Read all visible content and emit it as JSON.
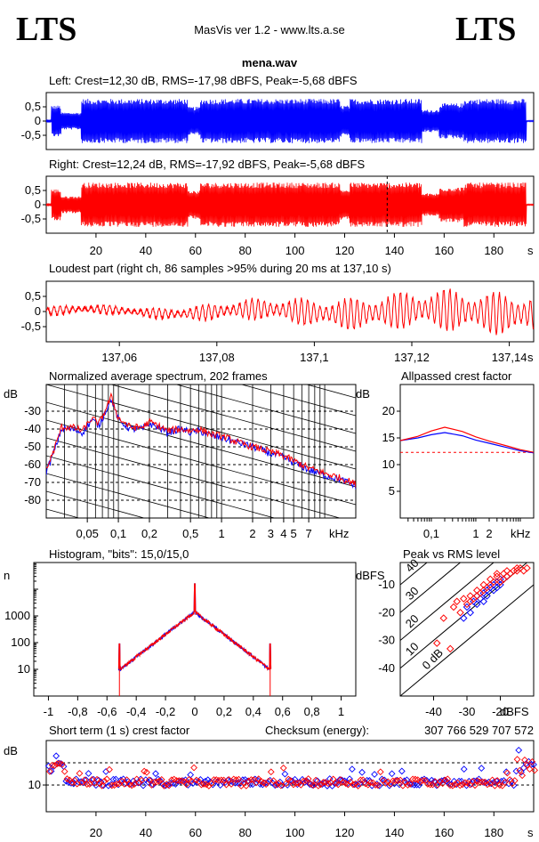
{
  "header": {
    "logo_left": "LTS",
    "logo_right": "LTS",
    "app_title": "MasVis ver 1.2 - www.lts.a.se",
    "filename": "mena.wav"
  },
  "colors": {
    "left": "#0000ff",
    "right": "#ff0000",
    "grid": "#000000"
  },
  "chart_data": [
    {
      "id": "left_waveform",
      "type": "area",
      "title": "Left: Crest=12,30 dB, RMS=-17,98 dBFS, Peak=-5,68 dBFS",
      "ytick_labels": [
        "0,5",
        "0",
        "-0,5"
      ],
      "yticks": [
        0.5,
        0,
        -0.5
      ],
      "ylim": [
        -1,
        1
      ],
      "xlim": [
        0,
        196
      ],
      "envelope_segments": [
        {
          "x": [
            0,
            2
          ],
          "amp": 0.05
        },
        {
          "x": [
            2,
            6
          ],
          "amp": 0.55
        },
        {
          "x": [
            6,
            14
          ],
          "amp": 0.3
        },
        {
          "x": [
            14,
            57
          ],
          "amp": 0.78
        },
        {
          "x": [
            57,
            62
          ],
          "amp": 0.5
        },
        {
          "x": [
            62,
            118
          ],
          "amp": 0.78
        },
        {
          "x": [
            118,
            122
          ],
          "amp": 0.55
        },
        {
          "x": [
            122,
            151
          ],
          "amp": 0.78
        },
        {
          "x": [
            151,
            158
          ],
          "amp": 0.4
        },
        {
          "x": [
            158,
            168
          ],
          "amp": 0.62
        },
        {
          "x": [
            168,
            193
          ],
          "amp": 0.78
        },
        {
          "x": [
            193,
            196
          ],
          "amp": 0.02
        }
      ]
    },
    {
      "id": "right_waveform",
      "type": "area",
      "title": "Right: Crest=12,24 dB, RMS=-17,92 dBFS, Peak=-5,68 dBFS",
      "ytick_labels": [
        "0,5",
        "0",
        "-0,5"
      ],
      "yticks": [
        0.5,
        0,
        -0.5
      ],
      "ylim": [
        -1,
        1
      ],
      "xlim": [
        0,
        196
      ],
      "xticks": [
        20,
        40,
        60,
        80,
        100,
        120,
        140,
        160,
        180
      ],
      "xtick_labels": [
        "20",
        "40",
        "60",
        "80",
        "100",
        "120",
        "140",
        "160",
        "180"
      ],
      "xunit": "s",
      "marker_x": 137.1,
      "envelope_segments": [
        {
          "x": [
            0,
            2
          ],
          "amp": 0.05
        },
        {
          "x": [
            2,
            6
          ],
          "amp": 0.55
        },
        {
          "x": [
            6,
            14
          ],
          "amp": 0.3
        },
        {
          "x": [
            14,
            57
          ],
          "amp": 0.78
        },
        {
          "x": [
            57,
            62
          ],
          "amp": 0.5
        },
        {
          "x": [
            62,
            118
          ],
          "amp": 0.78
        },
        {
          "x": [
            118,
            122
          ],
          "amp": 0.55
        },
        {
          "x": [
            122,
            151
          ],
          "amp": 0.78
        },
        {
          "x": [
            151,
            158
          ],
          "amp": 0.4
        },
        {
          "x": [
            158,
            168
          ],
          "amp": 0.62
        },
        {
          "x": [
            168,
            193
          ],
          "amp": 0.78
        },
        {
          "x": [
            193,
            196
          ],
          "amp": 0.02
        }
      ]
    },
    {
      "id": "loudest_part",
      "type": "line",
      "title": "Loudest part (right ch, 86 samples >95% during 20 ms at 137,10 s)",
      "ytick_labels": [
        "0,5",
        "0",
        "-0,5"
      ],
      "yticks": [
        0.5,
        0,
        -0.5
      ],
      "ylim": [
        -1,
        1
      ],
      "xlim": [
        137.045,
        137.145
      ],
      "xticks": [
        137.06,
        137.08,
        137.1,
        137.12,
        137.14
      ],
      "xtick_labels": [
        "137,06",
        "137,08",
        "137,1",
        "137,12",
        "137,14"
      ],
      "xunit": "s"
    },
    {
      "id": "spectrum",
      "type": "line",
      "title": "Normalized average spectrum, 202 frames",
      "ylabel": "dB",
      "xunit": "kHz",
      "xscale": "log",
      "xlim": [
        0.02,
        20
      ],
      "ylim": [
        -90,
        -15
      ],
      "yticks": [
        -30,
        -40,
        -50,
        -60,
        -70,
        -80
      ],
      "ytick_labels": [
        "-30",
        "-40",
        "-50",
        "-60",
        "-70",
        "-80"
      ],
      "xticks": [
        0.05,
        0.1,
        0.2,
        0.5,
        1,
        2,
        3,
        4,
        5,
        7
      ],
      "xtick_labels": [
        "0,05",
        "0,1",
        "0,2",
        "0,5",
        "1",
        "2",
        "3",
        "4",
        "5",
        "7"
      ],
      "series": [
        {
          "color": "blue",
          "x": [
            0.02,
            0.024,
            0.028,
            0.035,
            0.045,
            0.055,
            0.065,
            0.075,
            0.085,
            0.1,
            0.13,
            0.17,
            0.2,
            0.3,
            0.4,
            0.5,
            0.6,
            0.8,
            1,
            1.5,
            2,
            3,
            4,
            5,
            7,
            10,
            15,
            20
          ],
          "y": [
            -64,
            -52,
            -40,
            -40,
            -42,
            -35,
            -38,
            -30,
            -23,
            -35,
            -40,
            -40,
            -37,
            -42,
            -40,
            -42,
            -41,
            -44,
            -45,
            -48,
            -50,
            -54,
            -56,
            -59,
            -63,
            -66,
            -69,
            -72
          ]
        },
        {
          "color": "red",
          "x": [
            0.02,
            0.024,
            0.028,
            0.035,
            0.045,
            0.055,
            0.065,
            0.075,
            0.085,
            0.1,
            0.13,
            0.17,
            0.2,
            0.3,
            0.4,
            0.5,
            0.6,
            0.8,
            1,
            1.5,
            2,
            3,
            4,
            5,
            7,
            10,
            15,
            20
          ],
          "y": [
            -63,
            -51,
            -39,
            -39,
            -41,
            -34,
            -37,
            -29,
            -22,
            -34,
            -39,
            -39,
            -36,
            -41,
            -40,
            -41,
            -40,
            -43,
            -44,
            -48,
            -50,
            -53,
            -55,
            -58,
            -62,
            -65,
            -68,
            -71
          ]
        }
      ]
    },
    {
      "id": "allpass_crest",
      "type": "line",
      "title": "Allpassed crest factor",
      "ylabel": "dB",
      "xunit": "kHz",
      "xscale": "log",
      "xlim": [
        0.02,
        20
      ],
      "ylim": [
        0,
        25
      ],
      "yticks": [
        20,
        15,
        10,
        5
      ],
      "ytick_labels": [
        "20",
        "15",
        "10",
        "5"
      ],
      "xticks": [
        0.1,
        1,
        2
      ],
      "xtick_labels": [
        "0,1",
        "1",
        "2"
      ],
      "reference_line": 12.3,
      "series": [
        {
          "color": "blue",
          "x": [
            0.02,
            0.05,
            0.1,
            0.2,
            0.5,
            1,
            2,
            5,
            10,
            20
          ],
          "y": [
            14.5,
            15.0,
            15.6,
            16.0,
            15.4,
            14.6,
            14.0,
            13.2,
            12.6,
            12.2
          ]
        },
        {
          "color": "red",
          "x": [
            0.02,
            0.05,
            0.1,
            0.2,
            0.5,
            1,
            2,
            5,
            10,
            20
          ],
          "y": [
            14.5,
            15.3,
            16.3,
            17.0,
            16.2,
            15.2,
            14.4,
            13.5,
            12.8,
            12.3
          ]
        }
      ]
    },
    {
      "id": "histogram",
      "type": "line",
      "title": "Histogram, \"bits\": 15,0/15,0",
      "ylabel": "n",
      "yscale": "log",
      "ylim": [
        1,
        100000
      ],
      "xlim": [
        -1.1,
        1.1
      ],
      "yticks": [
        1000,
        100,
        10
      ],
      "ytick_labels": [
        "1000",
        "100",
        "10"
      ],
      "xticks": [
        -1,
        -0.8,
        -0.6,
        -0.4,
        -0.2,
        0,
        0.2,
        0.4,
        0.6,
        0.8,
        1
      ],
      "xtick_labels": [
        "-1",
        "-0,8",
        "-0,6",
        "-0,4",
        "-0,2",
        "0",
        "0,2",
        "0,4",
        "0,6",
        "0,8",
        "1"
      ]
    },
    {
      "id": "peak_vs_rms",
      "type": "scatter",
      "title": "Peak vs RMS level",
      "ylabel": "dBFS",
      "xlabel": "dBFS",
      "xlim": [
        -50,
        -10
      ],
      "ylim": [
        -50,
        -2
      ],
      "yticks": [
        -10,
        -20,
        -30,
        -40
      ],
      "ytick_labels": [
        "-10",
        "-20",
        "-30",
        "-40"
      ],
      "xticks": [
        -40,
        -30,
        -20
      ],
      "xtick_labels": [
        "-40",
        "-30",
        "-20"
      ],
      "crest_line_labels": [
        "40",
        "30",
        "20",
        "10",
        "0 dB"
      ],
      "crest_lines": [
        40,
        30,
        20,
        10,
        0
      ],
      "series": [
        {
          "color": "blue",
          "points": [
            [
              -30,
              -18
            ],
            [
              -28,
              -16
            ],
            [
              -27,
              -14
            ],
            [
              -25,
              -13
            ],
            [
              -24,
              -12
            ],
            [
              -22,
              -10
            ],
            [
              -21,
              -9
            ],
            [
              -20,
              -8
            ],
            [
              -19,
              -8
            ],
            [
              -18,
              -7
            ],
            [
              -23,
              -11
            ],
            [
              -26,
              -15
            ],
            [
              -31,
              -22
            ],
            [
              -29,
              -20
            ],
            [
              -24,
              -14
            ],
            [
              -22,
              -12
            ],
            [
              -20,
              -10
            ],
            [
              -25,
              -16
            ],
            [
              -27,
              -17
            ],
            [
              -21,
              -11
            ]
          ]
        },
        {
          "color": "red",
          "points": [
            [
              -33,
              -16
            ],
            [
              -31,
              -15
            ],
            [
              -29,
              -14
            ],
            [
              -27,
              -12
            ],
            [
              -25,
              -10
            ],
            [
              -23,
              -8
            ],
            [
              -21,
              -7
            ],
            [
              -19,
              -6
            ],
            [
              -17,
              -6
            ],
            [
              -15,
              -5
            ],
            [
              -13,
              -5
            ],
            [
              -12,
              -4
            ],
            [
              -20,
              -9
            ],
            [
              -18,
              -7
            ],
            [
              -22,
              -9
            ],
            [
              -24,
              -11
            ],
            [
              -26,
              -13
            ],
            [
              -28,
              -15
            ],
            [
              -30,
              -17
            ],
            [
              -32,
              -20
            ],
            [
              -34,
              -18
            ],
            [
              -16,
              -5
            ],
            [
              -14,
              -4
            ],
            [
              -19,
              -8
            ],
            [
              -23,
              -10
            ],
            [
              -25,
              -12
            ],
            [
              -27,
              -14
            ],
            [
              -29,
              -16
            ],
            [
              -39,
              -31
            ],
            [
              -37,
              -22
            ],
            [
              -35,
              -33
            ],
            [
              -21,
              -6
            ],
            [
              -18,
              -5
            ],
            [
              -15,
              -4
            ]
          ]
        }
      ]
    },
    {
      "id": "short_term_crest",
      "type": "scatter",
      "title": "Short term (1 s) crest factor",
      "checksum_label": "Checksum (energy):",
      "checksum_value": "307 766 529 707 572",
      "ylabel": "dB",
      "xunit": "s",
      "xlim": [
        0,
        196
      ],
      "ylim": [
        4,
        20
      ],
      "yticks": [
        10
      ],
      "ytick_labels": [
        "10"
      ],
      "xticks": [
        20,
        40,
        60,
        80,
        100,
        120,
        140,
        160,
        180
      ],
      "xtick_labels": [
        "20",
        "40",
        "60",
        "80",
        "100",
        "120",
        "140",
        "160",
        "180"
      ],
      "dashed_levels": [
        15,
        10
      ]
    }
  ]
}
